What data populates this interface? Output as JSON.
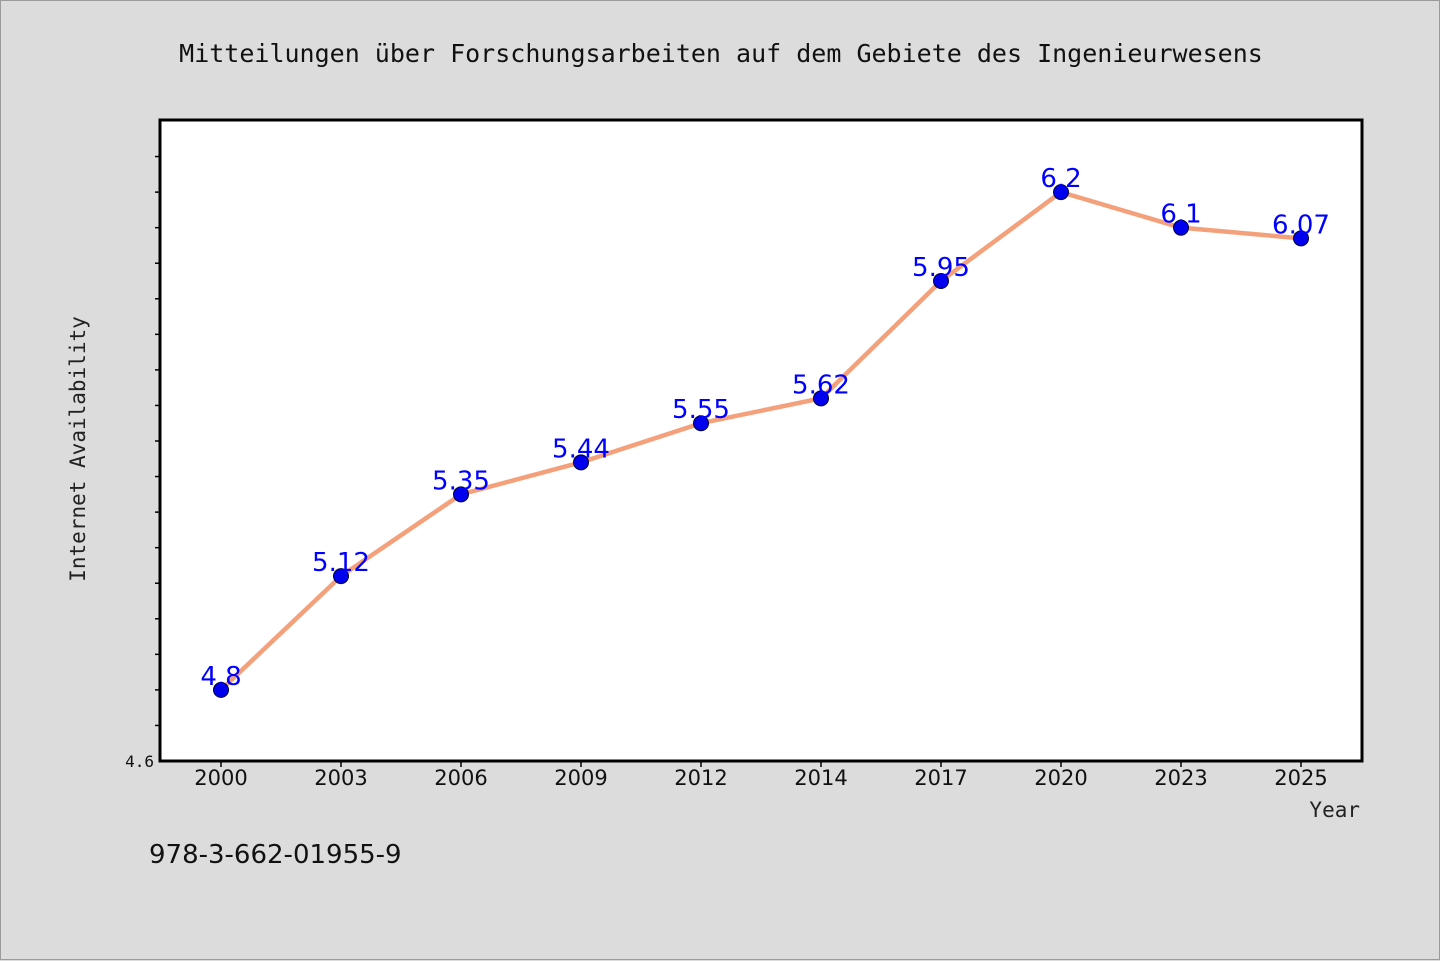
{
  "chart_data": {
    "type": "line",
    "title": "Mitteilungen über Forschungsarbeiten auf dem Gebiete des Ingenieurwesens",
    "xlabel": "Year",
    "ylabel": "Internet Availability",
    "categories": [
      "2000",
      "2003",
      "2006",
      "2009",
      "2012",
      "2014",
      "2017",
      "2020",
      "2023",
      "2025"
    ],
    "series": [
      {
        "values": [
          4.8,
          5.12,
          5.35,
          5.44,
          5.55,
          5.62,
          5.95,
          6.2,
          6.1,
          6.07
        ]
      }
    ],
    "data_labels": [
      "4.8",
      "5.12",
      "5.35",
      "5.44",
      "5.55",
      "5.62",
      "5.95",
      "6.2",
      "6.1",
      "6.07"
    ],
    "ylim": [
      4.6,
      6.4
    ],
    "ytick_labels": [
      "4.6"
    ],
    "grid": false,
    "legend": false,
    "line_color": "#f4a07a",
    "marker_color": "#0000ee",
    "label_color": "#0000ff",
    "plot_background": "#ffffff",
    "figure_background": "#dcdcdc"
  },
  "footer": {
    "isbn": "978-3-662-01955-9"
  }
}
